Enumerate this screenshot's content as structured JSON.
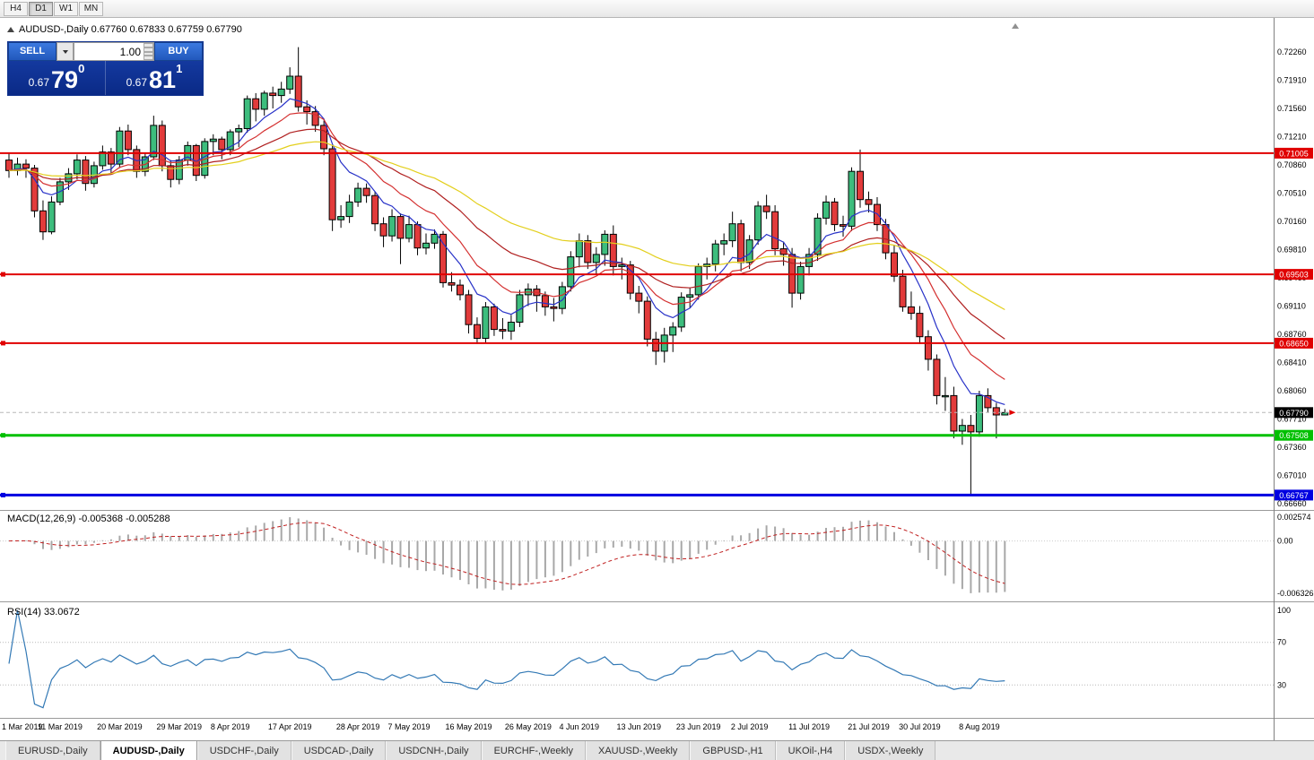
{
  "toolbar": {
    "timeframes": [
      {
        "label": "H4"
      },
      {
        "label": "D1"
      },
      {
        "label": "W1"
      },
      {
        "label": "MN"
      }
    ]
  },
  "chart": {
    "title": "AUDUSD-,Daily  0.67760 0.67833 0.67759 0.67790"
  },
  "trade_panel": {
    "sell_label": "SELL",
    "buy_label": "BUY",
    "volume": "1.00",
    "sell_price": {
      "prefix": "0.67",
      "big": "79",
      "sup": "0"
    },
    "buy_price": {
      "prefix": "0.67",
      "big": "81",
      "sup": "1"
    }
  },
  "indicators": {
    "macd": {
      "label": "MACD(12,26,9) -0.005368 -0.005288",
      "axis": [
        "0.002574",
        "0.00",
        "-0.006326"
      ]
    },
    "rsi": {
      "label": "RSI(14) 33.0672",
      "axis": [
        "100",
        "70",
        "30"
      ],
      "levels": [
        70,
        30
      ]
    }
  },
  "colors": {
    "candle_up": "#3dbd7d",
    "candle_down": "#e23b3b",
    "candle_border": "#000000",
    "wick": "#000000",
    "macd_hist": "#a8a8a8",
    "macd_signal": "#c02020",
    "rsi_line": "#3379b5"
  },
  "chart_data": {
    "type": "candlestick",
    "symbol": "AUDUSD-",
    "timeframe": "Daily",
    "current_bar": {
      "open": "0.67760",
      "high": "0.67833",
      "low": "0.67759",
      "close": "0.67790"
    },
    "ohlc": [
      [
        0.7092,
        0.7101,
        0.707,
        0.7079
      ],
      [
        0.7079,
        0.7095,
        0.7073,
        0.7087
      ],
      [
        0.7087,
        0.7093,
        0.707,
        0.7082
      ],
      [
        0.7082,
        0.7086,
        0.7021,
        0.7029
      ],
      [
        0.7029,
        0.7042,
        0.6993,
        0.7003
      ],
      [
        0.7003,
        0.7047,
        0.7,
        0.704
      ],
      [
        0.704,
        0.707,
        0.7036,
        0.7065
      ],
      [
        0.7065,
        0.7082,
        0.7055,
        0.7075
      ],
      [
        0.7075,
        0.7099,
        0.7068,
        0.7092
      ],
      [
        0.7092,
        0.7097,
        0.7054,
        0.7063
      ],
      [
        0.7063,
        0.709,
        0.7058,
        0.7085
      ],
      [
        0.7085,
        0.711,
        0.708,
        0.7102
      ],
      [
        0.7102,
        0.7107,
        0.7076,
        0.7087
      ],
      [
        0.7087,
        0.7133,
        0.7082,
        0.7128
      ],
      [
        0.7128,
        0.7136,
        0.7098,
        0.7105
      ],
      [
        0.7105,
        0.711,
        0.707,
        0.7078
      ],
      [
        0.7078,
        0.7101,
        0.7072,
        0.7096
      ],
      [
        0.7096,
        0.7147,
        0.7092,
        0.7135
      ],
      [
        0.7135,
        0.7141,
        0.7078,
        0.7085
      ],
      [
        0.7085,
        0.7092,
        0.7058,
        0.7068
      ],
      [
        0.7068,
        0.7097,
        0.7062,
        0.7092
      ],
      [
        0.7092,
        0.7115,
        0.7085,
        0.711
      ],
      [
        0.711,
        0.7112,
        0.7066,
        0.7073
      ],
      [
        0.7073,
        0.7119,
        0.7069,
        0.7115
      ],
      [
        0.7115,
        0.7124,
        0.7098,
        0.7118
      ],
      [
        0.7118,
        0.7121,
        0.7093,
        0.7105
      ],
      [
        0.7105,
        0.713,
        0.7098,
        0.7127
      ],
      [
        0.7127,
        0.7136,
        0.7108,
        0.7131
      ],
      [
        0.7131,
        0.7172,
        0.7126,
        0.7168
      ],
      [
        0.7168,
        0.7175,
        0.714,
        0.7155
      ],
      [
        0.7155,
        0.7178,
        0.7147,
        0.7175
      ],
      [
        0.7175,
        0.7183,
        0.7156,
        0.7172
      ],
      [
        0.7172,
        0.7189,
        0.7163,
        0.718
      ],
      [
        0.718,
        0.7207,
        0.7174,
        0.7196
      ],
      [
        0.7196,
        0.7232,
        0.7152,
        0.7158
      ],
      [
        0.7158,
        0.7166,
        0.7136,
        0.7152
      ],
      [
        0.7152,
        0.7159,
        0.7127,
        0.7135
      ],
      [
        0.7135,
        0.7141,
        0.7098,
        0.7106
      ],
      [
        0.7106,
        0.711,
        0.7004,
        0.7018
      ],
      [
        0.7018,
        0.7036,
        0.7008,
        0.7022
      ],
      [
        0.7022,
        0.7049,
        0.7014,
        0.704
      ],
      [
        0.704,
        0.7064,
        0.7034,
        0.7057
      ],
      [
        0.7057,
        0.7063,
        0.7039,
        0.7048
      ],
      [
        0.7048,
        0.7053,
        0.7004,
        0.7013
      ],
      [
        0.7013,
        0.7021,
        0.6984,
        0.6998
      ],
      [
        0.6998,
        0.7031,
        0.6991,
        0.7022
      ],
      [
        0.7022,
        0.7026,
        0.6963,
        0.6995
      ],
      [
        0.6995,
        0.7023,
        0.699,
        0.7012
      ],
      [
        0.7012,
        0.7016,
        0.6974,
        0.6983
      ],
      [
        0.6983,
        0.7001,
        0.6975,
        0.6989
      ],
      [
        0.6989,
        0.7006,
        0.6982,
        0.7
      ],
      [
        0.7,
        0.7004,
        0.6934,
        0.694
      ],
      [
        0.694,
        0.6953,
        0.6929,
        0.6937
      ],
      [
        0.6937,
        0.6944,
        0.6918,
        0.6925
      ],
      [
        0.6925,
        0.6931,
        0.6877,
        0.6888
      ],
      [
        0.6888,
        0.6897,
        0.6864,
        0.6871
      ],
      [
        0.6871,
        0.6916,
        0.6866,
        0.691
      ],
      [
        0.691,
        0.6914,
        0.6874,
        0.6882
      ],
      [
        0.6882,
        0.6896,
        0.687,
        0.688
      ],
      [
        0.688,
        0.69,
        0.6869,
        0.6891
      ],
      [
        0.6891,
        0.6931,
        0.6885,
        0.6925
      ],
      [
        0.6925,
        0.6939,
        0.6911,
        0.6932
      ],
      [
        0.6932,
        0.6937,
        0.6904,
        0.6924
      ],
      [
        0.6924,
        0.6929,
        0.6899,
        0.691
      ],
      [
        0.691,
        0.6921,
        0.6892,
        0.6908
      ],
      [
        0.6908,
        0.6941,
        0.6901,
        0.6935
      ],
      [
        0.6935,
        0.6979,
        0.6929,
        0.6972
      ],
      [
        0.6972,
        0.7001,
        0.6959,
        0.6992
      ],
      [
        0.6992,
        0.6999,
        0.6957,
        0.6965
      ],
      [
        0.6965,
        0.6984,
        0.695,
        0.6975
      ],
      [
        0.6975,
        0.7005,
        0.6961,
        0.7
      ],
      [
        0.7,
        0.7011,
        0.6949,
        0.696
      ],
      [
        0.696,
        0.6971,
        0.6944,
        0.6962
      ],
      [
        0.6962,
        0.6967,
        0.6919,
        0.6927
      ],
      [
        0.6927,
        0.6936,
        0.6902,
        0.6917
      ],
      [
        0.6917,
        0.6923,
        0.6861,
        0.687
      ],
      [
        0.687,
        0.6879,
        0.6838,
        0.6855
      ],
      [
        0.6855,
        0.6884,
        0.6841,
        0.6875
      ],
      [
        0.6875,
        0.6891,
        0.6854,
        0.6885
      ],
      [
        0.6885,
        0.6928,
        0.6879,
        0.6922
      ],
      [
        0.6922,
        0.6934,
        0.6909,
        0.6925
      ],
      [
        0.6925,
        0.6964,
        0.6919,
        0.696
      ],
      [
        0.696,
        0.6971,
        0.6944,
        0.6963
      ],
      [
        0.6963,
        0.6993,
        0.6954,
        0.6988
      ],
      [
        0.6988,
        0.7001,
        0.6974,
        0.6992
      ],
      [
        0.6992,
        0.7028,
        0.6984,
        0.7013
      ],
      [
        0.7013,
        0.7018,
        0.6954,
        0.6965
      ],
      [
        0.6965,
        0.6999,
        0.6957,
        0.6993
      ],
      [
        0.6993,
        0.7041,
        0.6987,
        0.7035
      ],
      [
        0.7035,
        0.7049,
        0.7019,
        0.7028
      ],
      [
        0.7028,
        0.7036,
        0.6974,
        0.6982
      ],
      [
        0.6982,
        0.6991,
        0.6961,
        0.6975
      ],
      [
        0.6975,
        0.6983,
        0.6909,
        0.6927
      ],
      [
        0.6927,
        0.6966,
        0.6919,
        0.696
      ],
      [
        0.696,
        0.6983,
        0.6949,
        0.6975
      ],
      [
        0.6975,
        0.7026,
        0.6967,
        0.702
      ],
      [
        0.702,
        0.7048,
        0.7012,
        0.704
      ],
      [
        0.704,
        0.7045,
        0.7004,
        0.7012
      ],
      [
        0.7012,
        0.7023,
        0.6997,
        0.701
      ],
      [
        0.701,
        0.7083,
        0.7004,
        0.7078
      ],
      [
        0.7078,
        0.7105,
        0.7033,
        0.7043
      ],
      [
        0.7043,
        0.7053,
        0.7027,
        0.7037
      ],
      [
        0.7037,
        0.7046,
        0.7004,
        0.7012
      ],
      [
        0.7012,
        0.7019,
        0.6969,
        0.6977
      ],
      [
        0.6977,
        0.6986,
        0.6941,
        0.6948
      ],
      [
        0.6948,
        0.6956,
        0.6904,
        0.691
      ],
      [
        0.691,
        0.6929,
        0.6894,
        0.6902
      ],
      [
        0.6902,
        0.6911,
        0.6864,
        0.6873
      ],
      [
        0.6873,
        0.6881,
        0.6831,
        0.6845
      ],
      [
        0.6845,
        0.6851,
        0.6789,
        0.68
      ],
      [
        0.68,
        0.6823,
        0.6781,
        0.68
      ],
      [
        0.68,
        0.6811,
        0.6747,
        0.6756
      ],
      [
        0.6756,
        0.6771,
        0.6739,
        0.6763
      ],
      [
        0.6763,
        0.6776,
        0.66767,
        0.6755
      ],
      [
        0.6755,
        0.6806,
        0.6749,
        0.68
      ],
      [
        0.68,
        0.6809,
        0.6779,
        0.6785
      ],
      [
        0.6785,
        0.6791,
        0.6747,
        0.6776
      ],
      [
        0.6776,
        0.67833,
        0.67759,
        0.6779
      ]
    ],
    "x_labels": [
      {
        "label": "1 Mar 2019",
        "i": 0
      },
      {
        "label": "11 Mar 2019",
        "i": 6
      },
      {
        "label": "20 Mar 2019",
        "i": 13
      },
      {
        "label": "29 Mar 2019",
        "i": 20
      },
      {
        "label": "8 Apr 2019",
        "i": 26
      },
      {
        "label": "17 Apr 2019",
        "i": 33
      },
      {
        "label": "28 Apr 2019",
        "i": 41
      },
      {
        "label": "7 May 2019",
        "i": 47
      },
      {
        "label": "16 May 2019",
        "i": 54
      },
      {
        "label": "26 May 2019",
        "i": 61
      },
      {
        "label": "4 Jun 2019",
        "i": 67
      },
      {
        "label": "13 Jun 2019",
        "i": 74
      },
      {
        "label": "23 Jun 2019",
        "i": 81
      },
      {
        "label": "2 Jul 2019",
        "i": 87
      },
      {
        "label": "11 Jul 2019",
        "i": 94
      },
      {
        "label": "21 Jul 2019",
        "i": 101
      },
      {
        "label": "30 Jul 2019",
        "i": 107
      },
      {
        "label": "8 Aug 2019",
        "i": 114
      }
    ],
    "y_axis": {
      "labels": [
        "0.72260",
        "0.71910",
        "0.71560",
        "0.71210",
        "0.70860",
        "0.70510",
        "0.70160",
        "0.69810",
        "0.69460",
        "0.69110",
        "0.68760",
        "0.68410",
        "0.68060",
        "0.67710",
        "0.67360",
        "0.67010",
        "0.66660"
      ]
    },
    "horizontal_lines": [
      {
        "value": 0.71005,
        "label": "0.71005",
        "color": "#e00000",
        "width": 2,
        "handle": false
      },
      {
        "value": 0.69503,
        "label": "0.69503",
        "color": "#e00000",
        "width": 2,
        "handle": true
      },
      {
        "value": 0.6865,
        "label": "0.68650",
        "color": "#e00000",
        "width": 2,
        "handle": true
      },
      {
        "value": 0.67508,
        "label": "0.67508",
        "color": "#00c000",
        "width": 3,
        "handle": true
      },
      {
        "value": 0.66767,
        "label": "0.66767",
        "color": "#0000e0",
        "width": 3,
        "handle": true
      }
    ],
    "current_price": {
      "value": 0.6779,
      "label": "0.67790"
    },
    "moving_averages": [
      {
        "period": 7,
        "method": "ema",
        "color": "#2832c8"
      },
      {
        "period": 13,
        "method": "ema",
        "color": "#d43030"
      },
      {
        "period": 26,
        "method": "ema",
        "color": "#b02020"
      },
      {
        "period": 45,
        "method": "ema",
        "color": "#e3cf1c"
      }
    ]
  },
  "tabs": [
    {
      "label": "EURUSD-,Daily"
    },
    {
      "label": "AUDUSD-,Daily"
    },
    {
      "label": "USDCHF-,Daily"
    },
    {
      "label": "USDCAD-,Daily"
    },
    {
      "label": "USDCNH-,Daily"
    },
    {
      "label": "EURCHF-,Weekly"
    },
    {
      "label": "XAUUSD-,Weekly"
    },
    {
      "label": "GBPUSD-,H1"
    },
    {
      "label": "UKOil-,H4"
    },
    {
      "label": "USDX-,Weekly"
    }
  ]
}
